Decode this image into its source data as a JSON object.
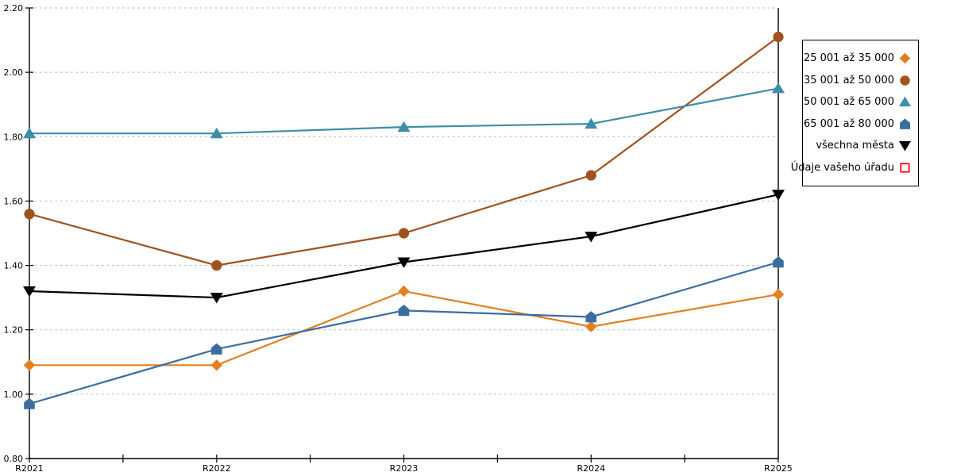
{
  "chart_data": {
    "type": "line",
    "categories": [
      "R2021",
      "R2022",
      "R2023",
      "R2024",
      "R2025"
    ],
    "series": [
      {
        "name": "25 001 až 35 000",
        "marker": "diamond",
        "color": "#E2801F",
        "values": [
          1.09,
          1.09,
          1.32,
          1.21,
          1.31
        ]
      },
      {
        "name": "35 001 až 50 000",
        "marker": "circle",
        "color": "#A0521E",
        "values": [
          1.56,
          1.4,
          1.5,
          1.68,
          2.11
        ]
      },
      {
        "name": "50 001 až 65 000",
        "marker": "triangle-up",
        "color": "#3D8EA8",
        "values": [
          1.81,
          1.81,
          1.83,
          1.84,
          1.95
        ]
      },
      {
        "name": "65 001 až 80 000",
        "marker": "pentagon",
        "color": "#3C6DA0",
        "values": [
          0.97,
          1.14,
          1.26,
          1.24,
          1.41
        ]
      },
      {
        "name": "všechna města",
        "marker": "triangle-down",
        "color": "#000000",
        "values": [
          1.32,
          1.3,
          1.41,
          1.49,
          1.62
        ]
      },
      {
        "name": "Údaje vašeho úřadu",
        "marker": "square-open",
        "color": "#FF0000",
        "values": []
      }
    ],
    "yticks": [
      {
        "v": 0.8,
        "label": "0.80"
      },
      {
        "v": 1.0,
        "label": "1.00"
      },
      {
        "v": 1.2,
        "label": "1.20"
      },
      {
        "v": 1.4,
        "label": "1.40"
      },
      {
        "v": 1.6,
        "label": "1.60"
      },
      {
        "v": 1.8,
        "label": "1.80"
      },
      {
        "v": 2.0,
        "label": "2.00"
      },
      {
        "v": 2.2,
        "label": "2.20"
      }
    ],
    "title": "",
    "xlabel": "",
    "ylabel": "",
    "ylim": [
      0.8,
      2.2
    ],
    "grid": "horizontal-dashed",
    "grid_color": "#B3B3B3",
    "axis_color": "#000000",
    "legend_position": "right"
  }
}
